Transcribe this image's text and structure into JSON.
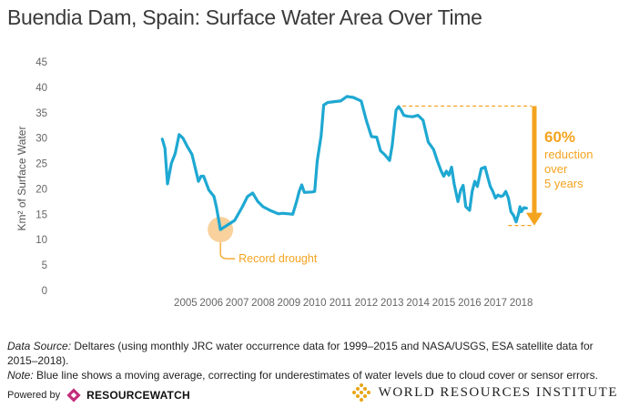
{
  "title": "Buendia Dam, Spain: Surface Water Area Over Time",
  "chart_data": {
    "type": "line",
    "ylabel": "Km² of Surface Water",
    "ylim": [
      0,
      45
    ],
    "yticks": [
      0,
      5,
      10,
      15,
      20,
      25,
      30,
      35,
      40,
      45
    ],
    "xlim": [
      2000.0,
      2018.4
    ],
    "xticks": [
      2005,
      2006,
      2007,
      2008,
      2009,
      2010,
      2011,
      2012,
      2013,
      2014,
      2015,
      2016,
      2017,
      2018
    ],
    "grid": false,
    "line_color": "#1ea8d2",
    "x": [
      2004.1,
      2004.2,
      2004.3,
      2004.45,
      2004.6,
      2004.75,
      2004.9,
      2005.05,
      2005.25,
      2005.5,
      2005.6,
      2005.7,
      2005.9,
      2006.1,
      2006.2,
      2006.35,
      2006.5,
      2006.9,
      2007.2,
      2007.4,
      2007.6,
      2007.8,
      2008.0,
      2008.3,
      2008.5,
      2008.6,
      2008.75,
      2009.0,
      2009.15,
      2009.3,
      2009.4,
      2009.5,
      2009.6,
      2009.9,
      2010.0,
      2010.1,
      2010.25,
      2010.35,
      2010.5,
      2010.8,
      2011.0,
      2011.25,
      2011.5,
      2011.8,
      2012.0,
      2012.2,
      2012.4,
      2012.55,
      2012.7,
      2012.9,
      2013.0,
      2013.15,
      2013.25,
      2013.35,
      2013.45,
      2013.6,
      2013.8,
      2014.0,
      2014.2,
      2014.4,
      2014.6,
      2014.75,
      2014.9,
      2015.0,
      2015.1,
      2015.2,
      2015.3,
      2015.4,
      2015.55,
      2015.65,
      2015.75,
      2015.85,
      2016.0,
      2016.1,
      2016.2,
      2016.3,
      2016.45,
      2016.6,
      2016.7,
      2016.8,
      2016.9,
      2017.0,
      2017.1,
      2017.2,
      2017.3,
      2017.4,
      2017.5,
      2017.6,
      2017.7,
      2017.8,
      2017.9,
      2017.95,
      2018.0,
      2018.1,
      2018.2
    ],
    "values": [
      29.8,
      28,
      21,
      25,
      27,
      30.7,
      30,
      28.5,
      26.8,
      21.5,
      22.5,
      22.5,
      19.8,
      18.5,
      16.3,
      12,
      12.5,
      13.8,
      16.5,
      18.5,
      19.2,
      17.5,
      16.5,
      15.7,
      15.3,
      15.1,
      15.2,
      15.1,
      15.0,
      17.5,
      19.5,
      20.8,
      19.3,
      19.4,
      19.5,
      25.5,
      30.5,
      36.5,
      37,
      37.2,
      37.3,
      38.2,
      38.0,
      37.3,
      33.5,
      30.3,
      30.2,
      27.5,
      26.8,
      25.6,
      28.5,
      35.5,
      36.2,
      35.5,
      34.5,
      34.3,
      34.2,
      34.5,
      33.5,
      29.2,
      27.8,
      25.5,
      23.5,
      22.5,
      23.5,
      22.7,
      24.3,
      21.0,
      17.5,
      19.7,
      20.7,
      16.5,
      15.8,
      19.5,
      21.5,
      20.5,
      24.0,
      24.3,
      22.3,
      20.5,
      19.5,
      18.2,
      18.8,
      18.5,
      18.7,
      19.5,
      18.2,
      15.5,
      14.8,
      13.5,
      15.2,
      16.5,
      15.5,
      16.3,
      16.2
    ],
    "annotations": {
      "drought_label": "Record drought",
      "drought_point": {
        "x": 2006.35,
        "y": 12
      },
      "reduction_value": "60%",
      "reduction_line1": "reduction",
      "reduction_line2": "over",
      "reduction_line3": "5 years",
      "reduction_top": {
        "x_start": 2013.4,
        "x_end": 2018.2,
        "y": 36.3
      },
      "reduction_bottom": {
        "x_start": 2017.5,
        "x_end": 2018.2,
        "y": 12.8
      },
      "accent_color": "#f4a31f"
    }
  },
  "footer": {
    "source_label": "Data Source:",
    "source_text": " Deltares (using monthly JRC water occurrence data for 1999–2015 and NASA/USGS, ESA satellite data for 2015–2018).",
    "note_label": "Note:",
    "note_text": " Blue line shows a moving average, correcting for underestimates of water levels due to cloud cover or sensor errors.",
    "powered_by": "Powered by",
    "resourcewatch": "RESOURCEWATCH",
    "wri": "WORLD RESOURCES INSTITUTE"
  }
}
